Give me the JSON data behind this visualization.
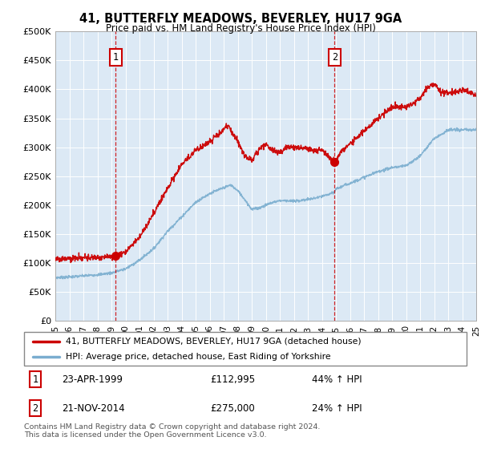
{
  "title": "41, BUTTERFLY MEADOWS, BEVERLEY, HU17 9GA",
  "subtitle": "Price paid vs. HM Land Registry's House Price Index (HPI)",
  "plot_bg_color": "#dce9f5",
  "ylim": [
    0,
    500000
  ],
  "yticks": [
    0,
    50000,
    100000,
    150000,
    200000,
    250000,
    300000,
    350000,
    400000,
    450000,
    500000
  ],
  "ytick_labels": [
    "£0",
    "£50K",
    "£100K",
    "£150K",
    "£200K",
    "£250K",
    "£300K",
    "£350K",
    "£400K",
    "£450K",
    "£500K"
  ],
  "xtick_years": [
    1995,
    1996,
    1997,
    1998,
    1999,
    2000,
    2001,
    2002,
    2003,
    2004,
    2005,
    2006,
    2007,
    2008,
    2009,
    2010,
    2011,
    2012,
    2013,
    2014,
    2015,
    2016,
    2017,
    2018,
    2019,
    2020,
    2021,
    2022,
    2023,
    2024,
    2025
  ],
  "sale1_x": 1999.31,
  "sale1_y": 112995,
  "sale1_label": "1",
  "sale1_date": "23-APR-1999",
  "sale1_price": "£112,995",
  "sale1_hpi": "44% ↑ HPI",
  "sale2_x": 2014.9,
  "sale2_y": 275000,
  "sale2_label": "2",
  "sale2_date": "21-NOV-2014",
  "sale2_price": "£275,000",
  "sale2_hpi": "24% ↑ HPI",
  "red_line_color": "#cc0000",
  "blue_line_color": "#7aadcf",
  "legend_label_red": "41, BUTTERFLY MEADOWS, BEVERLEY, HU17 9GA (detached house)",
  "legend_label_blue": "HPI: Average price, detached house, East Riding of Yorkshire",
  "footer": "Contains HM Land Registry data © Crown copyright and database right 2024.\nThis data is licensed under the Open Government Licence v3.0.",
  "hpi_anchors_x": [
    1995.0,
    1996.0,
    1997.0,
    1998.0,
    1999.0,
    2000.0,
    2001.0,
    2002.0,
    2003.0,
    2004.0,
    2005.0,
    2006.0,
    2007.0,
    2007.5,
    2008.0,
    2008.5,
    2009.0,
    2009.5,
    2010.0,
    2010.5,
    2011.0,
    2011.5,
    2012.0,
    2012.5,
    2013.0,
    2013.5,
    2014.0,
    2014.9,
    2015.0,
    2016.0,
    2017.0,
    2018.0,
    2019.0,
    2020.0,
    2021.0,
    2022.0,
    2023.0,
    2024.0,
    2025.0
  ],
  "hpi_anchors_y": [
    75000,
    76000,
    78000,
    80000,
    83000,
    90000,
    105000,
    125000,
    155000,
    180000,
    205000,
    220000,
    230000,
    235000,
    225000,
    210000,
    193000,
    195000,
    200000,
    205000,
    208000,
    208000,
    207000,
    208000,
    210000,
    212000,
    215000,
    222000,
    228000,
    238000,
    248000,
    258000,
    265000,
    268000,
    285000,
    315000,
    330000,
    330000,
    330000
  ],
  "prop_anchors_x": [
    1995.0,
    1996.0,
    1997.0,
    1998.0,
    1999.0,
    1999.31,
    2000.0,
    2001.0,
    2002.0,
    2003.0,
    2004.0,
    2005.0,
    2006.0,
    2007.0,
    2007.3,
    2008.0,
    2008.5,
    2009.0,
    2009.5,
    2010.0,
    2010.5,
    2011.0,
    2011.5,
    2012.0,
    2012.5,
    2013.0,
    2013.5,
    2014.0,
    2014.9,
    2015.5,
    2016.0,
    2017.0,
    2018.0,
    2019.0,
    2020.0,
    2020.5,
    2021.0,
    2021.5,
    2022.0,
    2022.5,
    2023.0,
    2023.5,
    2024.0,
    2024.5,
    2025.0
  ],
  "prop_anchors_y": [
    108000,
    108000,
    109000,
    110000,
    111000,
    112995,
    120000,
    145000,
    185000,
    230000,
    270000,
    295000,
    310000,
    330000,
    338000,
    310000,
    285000,
    278000,
    295000,
    305000,
    295000,
    290000,
    300000,
    300000,
    298000,
    298000,
    293000,
    295000,
    275000,
    295000,
    305000,
    328000,
    350000,
    370000,
    370000,
    375000,
    385000,
    402000,
    410000,
    395000,
    395000,
    395000,
    400000,
    395000,
    390000
  ]
}
